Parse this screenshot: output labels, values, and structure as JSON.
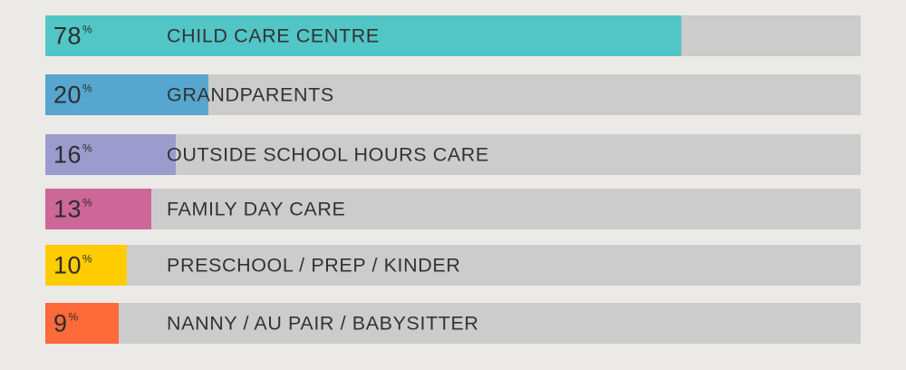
{
  "chart_data": {
    "type": "bar",
    "orientation": "horizontal",
    "categories": [
      "CHILD CARE CENTRE",
      "GRANDPARENTS",
      "OUTSIDE SCHOOL HOURS CARE",
      "FAMILY DAY CARE",
      "PRESCHOOL / PREP / KINDER",
      "NANNY / AU PAIR / BABYSITTER"
    ],
    "values": [
      78,
      20,
      16,
      13,
      10,
      9
    ],
    "unit_symbol": "%",
    "xlim": [
      0,
      100
    ],
    "colors": [
      "#52c5c6",
      "#56a6cf",
      "#9c9bce",
      "#cd6797",
      "#fecc00",
      "#fe6a3a"
    ],
    "track_color": "#cccccc",
    "grid": false,
    "legend": "none"
  }
}
